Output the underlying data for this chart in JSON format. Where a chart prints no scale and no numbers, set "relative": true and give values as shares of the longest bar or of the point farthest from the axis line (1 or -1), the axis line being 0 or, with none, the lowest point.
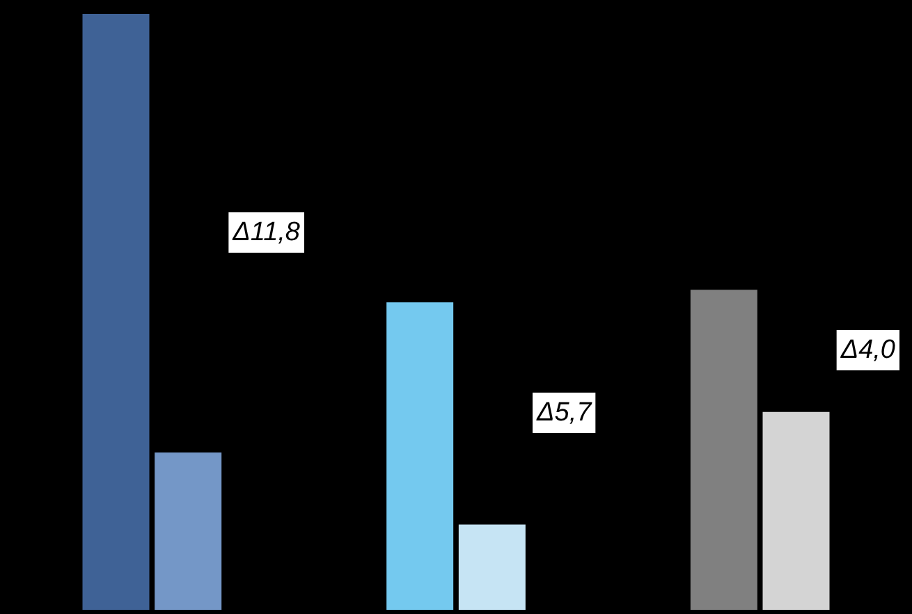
{
  "chart_data": {
    "type": "bar",
    "relative": true,
    "categories": [
      null,
      null,
      null
    ],
    "series": [
      {
        "colors": [
          "#3f6296",
          "#74c9ef",
          "#808080"
        ],
        "values": [
          1,
          0.516,
          0.537
        ]
      },
      {
        "colors": [
          "#7497c7",
          "#c6e4f4",
          "#d4d4d4"
        ],
        "values": [
          0.264,
          0.143,
          0.332
        ]
      }
    ],
    "annotations": [
      "Δ11,8",
      "Δ5,7",
      "Δ4,0"
    ]
  }
}
